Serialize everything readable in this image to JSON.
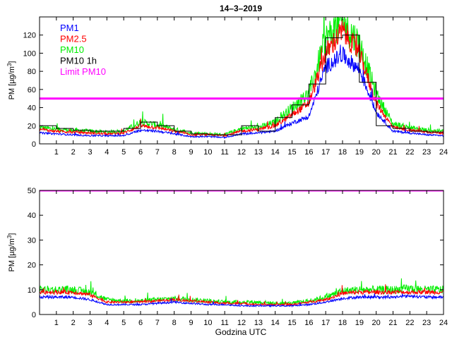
{
  "figure": {
    "title": "14–3–2019",
    "xlabel": "Godzina UTC"
  },
  "colors": {
    "pm1": "#0000ff",
    "pm25": "#ff0000",
    "pm10": "#00ee00",
    "pm10_1h": "#000000",
    "limit": "#ff00ff",
    "axis": "#000000"
  },
  "chart_data": [
    {
      "type": "line",
      "name": "top-panel",
      "title": "14–3–2019",
      "ylabel_prefix": "PM [µg/m",
      "ylabel_sup": "3",
      "ylabel_suffix": "]",
      "xlim": [
        0,
        24
      ],
      "ylim": [
        0,
        140
      ],
      "xticks": [
        1,
        2,
        3,
        4,
        5,
        6,
        7,
        8,
        9,
        10,
        11,
        12,
        13,
        14,
        15,
        16,
        17,
        18,
        19,
        20,
        21,
        22,
        23,
        24
      ],
      "yticks": [
        0,
        20,
        40,
        60,
        80,
        100,
        120
      ],
      "legend": {
        "position": "top-left",
        "entries": [
          {
            "label": "PM1",
            "color": "#0000ff"
          },
          {
            "label": "PM2.5",
            "color": "#ff0000"
          },
          {
            "label": "PM10",
            "color": "#00ee00"
          },
          {
            "label": "PM10 1h",
            "color": "#000000"
          },
          {
            "label": "Limit PM10",
            "color": "#ff00ff"
          }
        ]
      },
      "limit": 50,
      "hours": [
        0,
        1,
        2,
        3,
        4,
        5,
        6,
        7,
        8,
        9,
        10,
        11,
        12,
        13,
        14,
        15,
        16,
        17,
        18,
        19,
        20,
        21,
        22,
        23,
        24
      ],
      "series": [
        {
          "name": "PM1",
          "key": "pm1",
          "jitter": 0.06,
          "values": [
            12,
            11,
            10,
            9,
            9,
            9,
            15,
            14,
            11,
            8,
            8,
            7,
            11,
            12,
            14,
            23,
            30,
            85,
            98,
            82,
            35,
            14,
            12,
            10,
            9
          ]
        },
        {
          "name": "PM2.5",
          "key": "pm25",
          "jitter": 0.07,
          "values": [
            16,
            14,
            13,
            12,
            11,
            12,
            20,
            18,
            14,
            10,
            10,
            9,
            14,
            16,
            20,
            32,
            45,
            100,
            125,
            100,
            45,
            18,
            15,
            13,
            12
          ]
        },
        {
          "name": "PM10",
          "key": "pm10",
          "jitter": 0.1,
          "values": [
            18,
            16,
            15,
            14,
            13,
            14,
            24,
            21,
            16,
            12,
            11,
            10,
            17,
            18,
            24,
            40,
            55,
            115,
            135,
            110,
            55,
            22,
            18,
            15,
            14
          ]
        }
      ],
      "pm10_1h": [
        20,
        17,
        15,
        14,
        14,
        17,
        24,
        20,
        14,
        11,
        10,
        10,
        20,
        14,
        29,
        43,
        66,
        117,
        120,
        68,
        20,
        17,
        14,
        13
      ]
    },
    {
      "type": "line",
      "name": "bottom-panel",
      "title": "",
      "ylabel_prefix": "PM [µg/m",
      "ylabel_sup": "3",
      "ylabel_suffix": "]",
      "xlabel": "Godzina UTC",
      "xlim": [
        0,
        24
      ],
      "ylim": [
        0,
        50
      ],
      "xticks": [
        1,
        2,
        3,
        4,
        5,
        6,
        7,
        8,
        9,
        10,
        11,
        12,
        13,
        14,
        15,
        16,
        17,
        18,
        19,
        20,
        21,
        22,
        23,
        24
      ],
      "yticks": [
        0,
        10,
        20,
        30,
        40,
        50
      ],
      "limit": 50,
      "hours": [
        0,
        1,
        2,
        3,
        4,
        5,
        6,
        7,
        8,
        9,
        10,
        11,
        12,
        13,
        14,
        15,
        16,
        17,
        18,
        19,
        20,
        21,
        22,
        23,
        24
      ],
      "series": [
        {
          "name": "PM1",
          "key": "pm1",
          "jitter": 0.05,
          "values": [
            7,
            7,
            7,
            6,
            4,
            4,
            4,
            4.5,
            5,
            4.5,
            4,
            4,
            3.5,
            3.5,
            3.5,
            3.5,
            4,
            5,
            6.5,
            7,
            7,
            7,
            7.5,
            7,
            7
          ]
        },
        {
          "name": "PM2.5",
          "key": "pm25",
          "jitter": 0.06,
          "values": [
            9,
            9,
            9,
            8,
            5,
            5,
            5,
            5.5,
            6,
            5.5,
            5,
            4.5,
            4.5,
            4,
            4,
            4,
            5,
            6,
            8.5,
            9,
            9,
            9,
            9,
            9,
            9
          ]
        },
        {
          "name": "PM10",
          "key": "pm10",
          "jitter": 0.1,
          "values": [
            10,
            10,
            10,
            9,
            6,
            5.5,
            5.5,
            6,
            6.5,
            6,
            5.5,
            5,
            5,
            5,
            4.5,
            4.5,
            5.5,
            7,
            9.5,
            10,
            10,
            10,
            10.5,
            10,
            10
          ]
        }
      ]
    }
  ]
}
